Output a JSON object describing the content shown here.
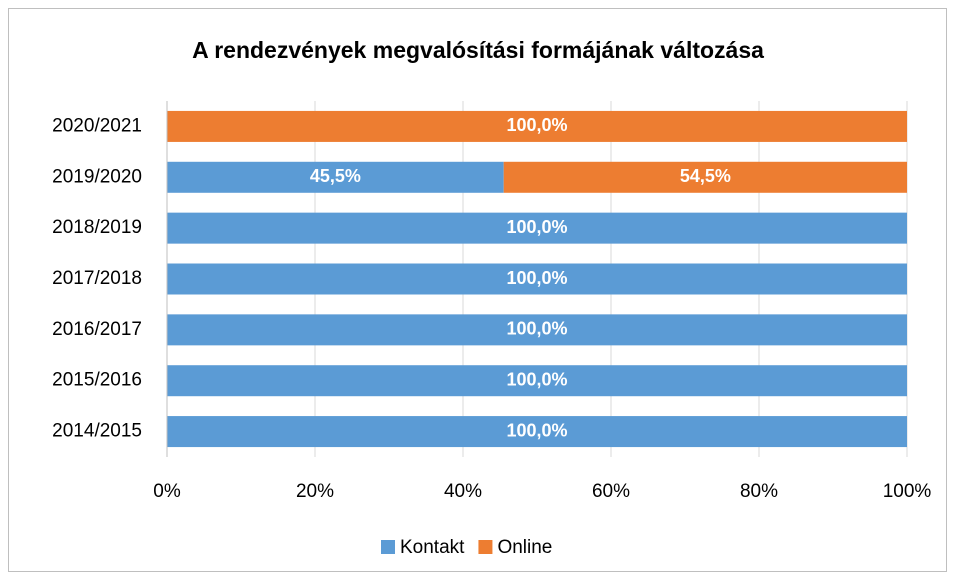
{
  "chart_data": {
    "type": "stacked-bar-horizontal",
    "title": "A rendezvények megvalósítási formájának változása",
    "categories": [
      "2014/2015",
      "2015/2016",
      "2016/2017",
      "2017/2018",
      "2018/2019",
      "2019/2020",
      "2020/2021"
    ],
    "series": [
      {
        "name": "Kontakt",
        "color": "#5b9bd5",
        "values": [
          100,
          100,
          100,
          100,
          100,
          45.5,
          0
        ],
        "value_labels": [
          "100,0%",
          "100,0%",
          "100,0%",
          "100,0%",
          "100,0%",
          "45,5%",
          null
        ]
      },
      {
        "name": "Online",
        "color": "#ed7d31",
        "values": [
          0,
          0,
          0,
          0,
          0,
          54.5,
          100
        ],
        "value_labels": [
          null,
          null,
          null,
          null,
          null,
          "54,5%",
          "100,0%"
        ]
      }
    ],
    "xlim": [
      0,
      100
    ],
    "xticks": [
      {
        "value": 0,
        "label": "0%"
      },
      {
        "value": 20,
        "label": "20%"
      },
      {
        "value": 40,
        "label": "40%"
      },
      {
        "value": 60,
        "label": "60%"
      },
      {
        "value": 80,
        "label": "80%"
      },
      {
        "value": 100,
        "label": "100%"
      }
    ],
    "grid": true,
    "legend": "bottom"
  }
}
